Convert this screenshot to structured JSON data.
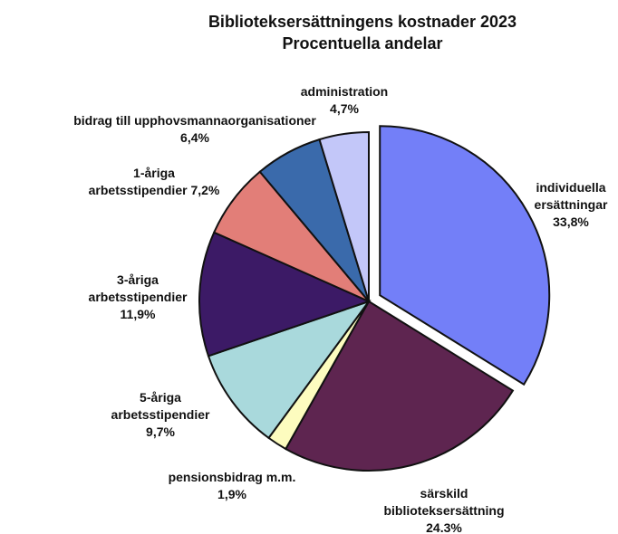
{
  "chart_data": {
    "type": "pie",
    "title": "Biblioteksersättningens kostnader 2023",
    "subtitle": "Procentuella andelar",
    "slices": [
      {
        "label_lines": [
          "individuella",
          "ersättningar",
          "33,8%"
        ],
        "value": 33.8,
        "color": "#737ff8",
        "exploded": true
      },
      {
        "label_lines": [
          "särskild",
          "biblioteksersättning",
          "24.3%"
        ],
        "value": 24.3,
        "color": "#5e2550",
        "exploded": false
      },
      {
        "label_lines": [
          "pensionsbidrag m.m.",
          "1,9%"
        ],
        "value": 1.9,
        "color": "#fdfcbf",
        "exploded": false
      },
      {
        "label_lines": [
          "5-åriga",
          "arbetsstipendier",
          "9,7%"
        ],
        "value": 9.7,
        "color": "#a9d9dc",
        "exploded": false
      },
      {
        "label_lines": [
          "3-åriga",
          "arbetsstipendier",
          "11,9%"
        ],
        "value": 11.9,
        "color": "#3c1a66",
        "exploded": false
      },
      {
        "label_lines": [
          "1-åriga",
          "arbetsstipendier 7,2%"
        ],
        "value": 7.2,
        "color": "#e27e78",
        "exploded": false
      },
      {
        "label_lines": [
          "bidrag till upphovsmannaorganisationer",
          "6,4%"
        ],
        "value": 6.4,
        "color": "#3a6aab",
        "exploded": false
      },
      {
        "label_lines": [
          "administration",
          "4,7%"
        ],
        "value": 4.7,
        "color": "#c3c7f9",
        "exploded": false
      }
    ],
    "start": "12 o'clock",
    "direction": "clockwise"
  }
}
